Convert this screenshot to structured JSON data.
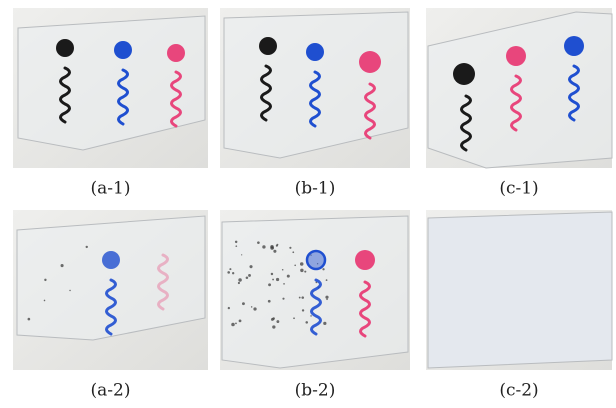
{
  "panels": [
    {
      "label": "(a-1)"
    },
    {
      "label": "(b-1)"
    },
    {
      "label": "(c-1)"
    },
    {
      "label": "(a-2)"
    },
    {
      "label": "(b-2)"
    },
    {
      "label": "(c-2)"
    }
  ]
}
